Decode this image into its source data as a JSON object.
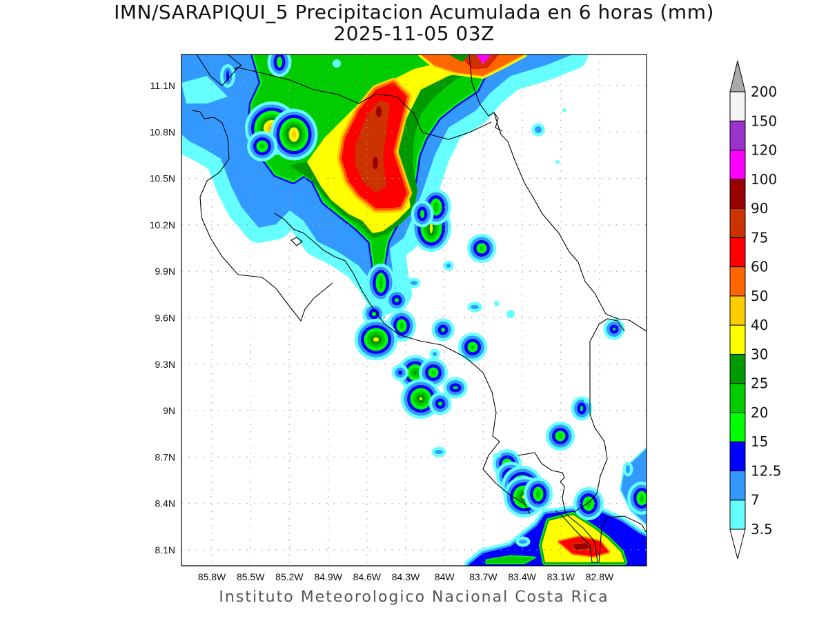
{
  "title": {
    "line1": "IMN/SARAPIQUI_5 Precipitacion Acumulada en 6 horas (mm)",
    "line2": "2025-11-05 03Z"
  },
  "map": {
    "lat_labels": [
      "11.1N",
      "10.8N",
      "10.5N",
      "10.2N",
      "9.9N",
      "9.6N",
      "9.3N",
      "9N",
      "8.7N",
      "8.4N",
      "8.1N"
    ],
    "lon_labels": [
      "85.8W",
      "85.5W",
      "85.2W",
      "84.9W",
      "84.6W",
      "84.3W",
      "84W",
      "83.7W",
      "83.4W",
      "83.1W",
      "82.8W"
    ],
    "coastline_color": "#000000",
    "grid_color": "#a0a0a0"
  },
  "colorbar": {
    "units": "mm",
    "labels": [
      "200",
      "150",
      "120",
      "100",
      "90",
      "75",
      "60",
      "50",
      "40",
      "30",
      "25",
      "20",
      "15",
      "12.5",
      "7",
      "3.5"
    ],
    "colors_low_to_high": [
      "#66ffff",
      "#3399ff",
      "#0000ff",
      "#00ff00",
      "#00cc00",
      "#009900",
      "#ffff00",
      "#ffcc00",
      "#ff6600",
      "#ff0000",
      "#cc3300",
      "#990000",
      "#ff00ff",
      "#9933cc",
      "#f5f5f5"
    ],
    "over_color": "#aaaaaa",
    "under_color": "#ffffff"
  },
  "credit": "Instituto Meteorologico Nacional Costa Rica"
}
